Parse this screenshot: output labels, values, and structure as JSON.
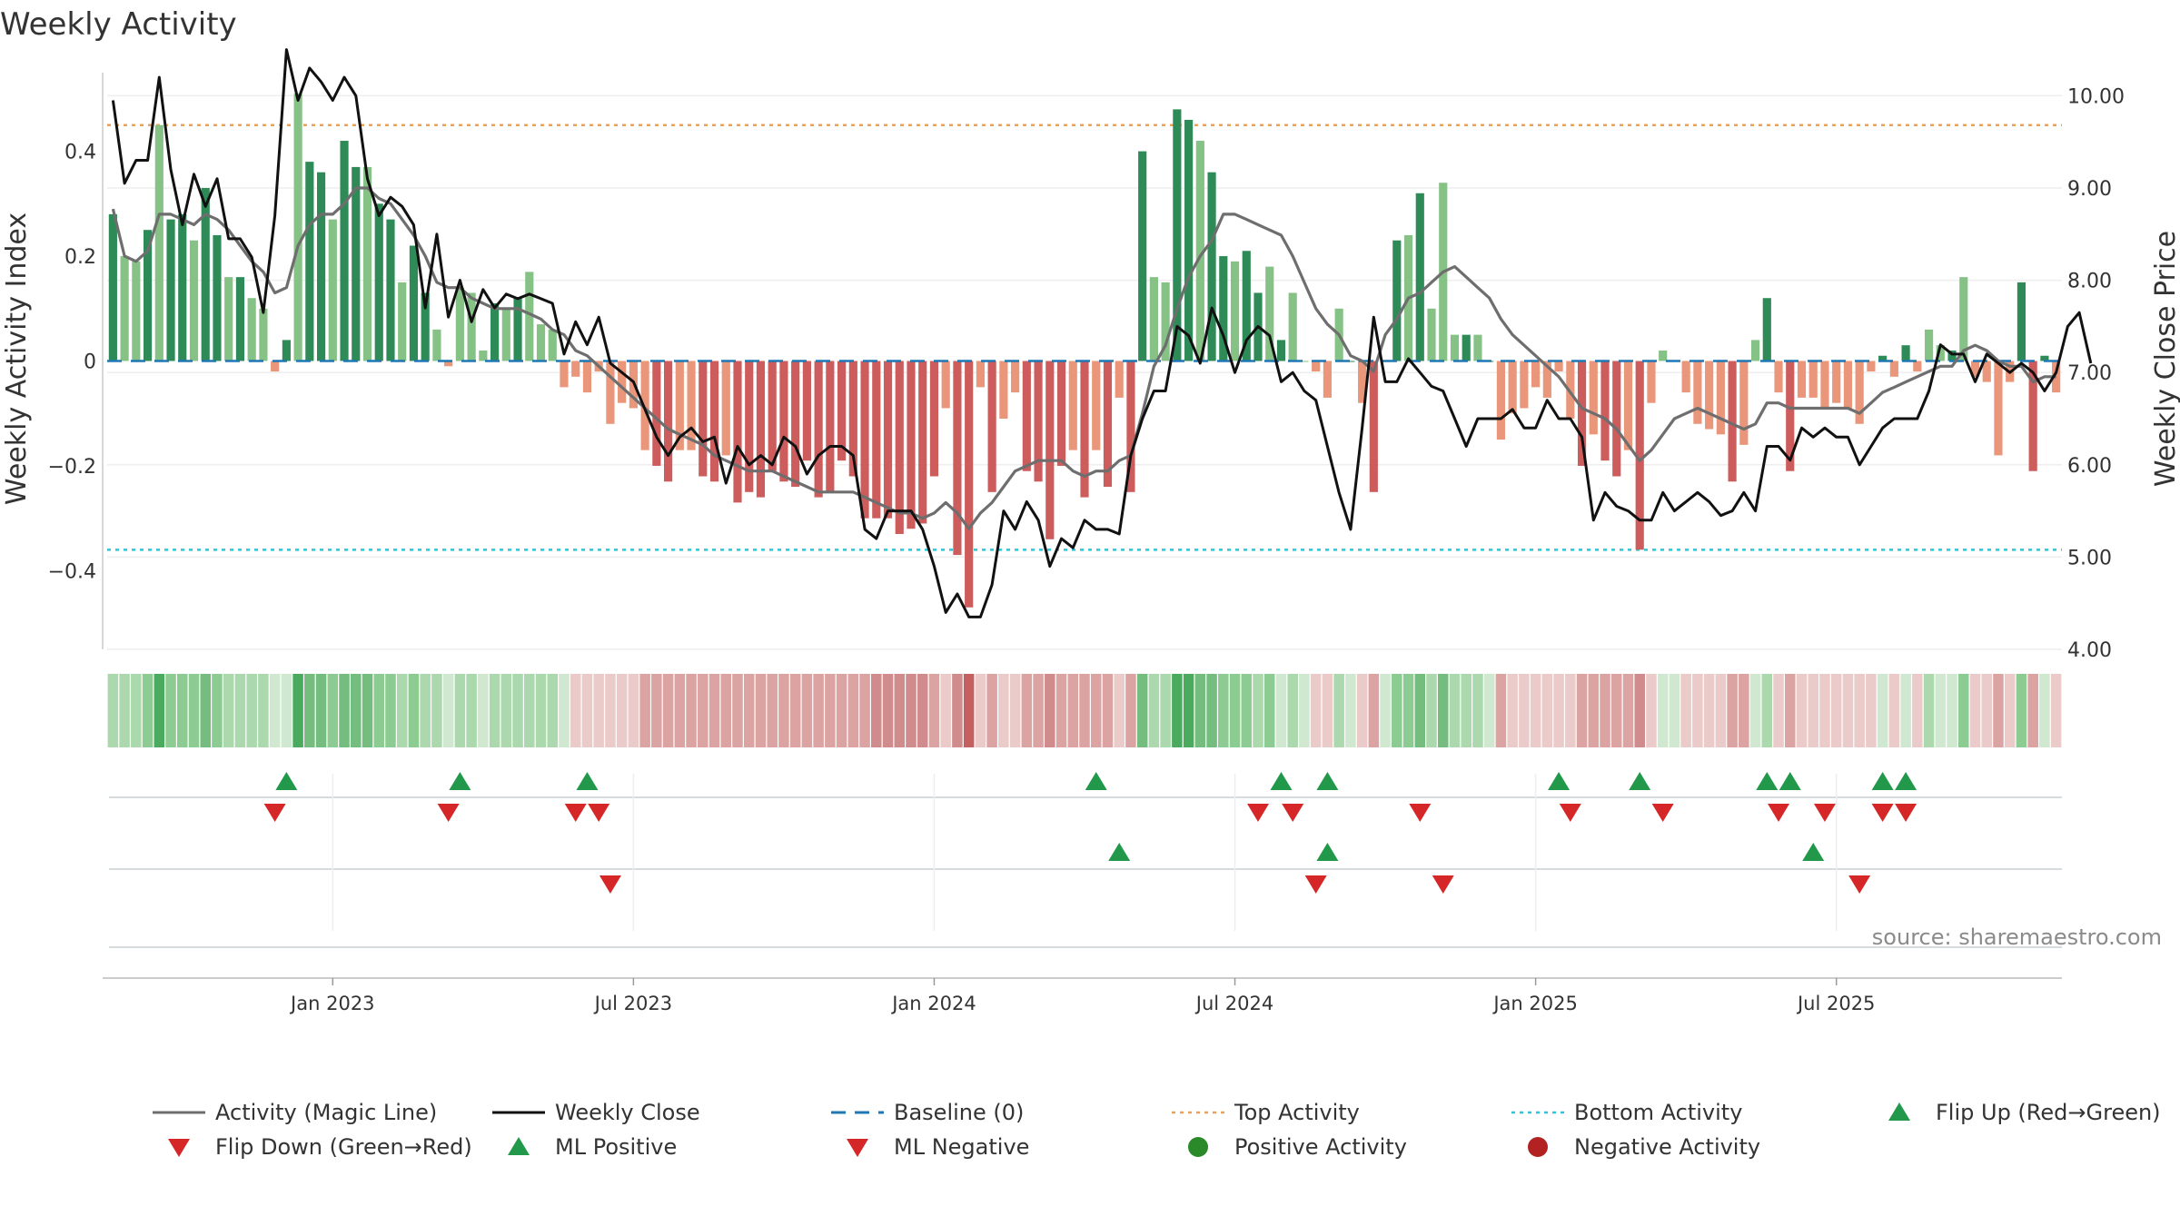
{
  "chart_data": {
    "type": "bar",
    "title": "Weekly Activity",
    "ylabel_left": "Weekly Activity Index",
    "ylabel_right": "Weekly Close Price",
    "source": "source: sharemaestro.com",
    "left_axis": {
      "min": -0.55,
      "max": 0.55,
      "ticks": [
        0.4,
        0.2,
        0,
        -0.2,
        -0.4
      ],
      "tick_labels": [
        "0.4",
        "0.2",
        "0",
        "−0.2",
        "−0.4"
      ]
    },
    "right_axis": {
      "min": 4.0,
      "max": 10.25,
      "ticks": [
        10,
        9,
        8,
        7,
        6,
        5,
        4
      ],
      "tick_labels": [
        "10.00",
        "9.00",
        "8.00",
        "7.00",
        "6.00",
        "5.00",
        "4.00"
      ]
    },
    "x_labels": [
      {
        "label": "Jan 2023",
        "week": 19
      },
      {
        "label": "Jul 2023",
        "week": 45
      },
      {
        "label": "Jan 2024",
        "week": 71
      },
      {
        "label": "Jul 2024",
        "week": 97
      },
      {
        "label": "Jan 2025",
        "week": 123
      },
      {
        "label": "Jul 2025",
        "week": 149
      }
    ],
    "top_activity": 0.45,
    "bottom_activity": -0.36,
    "baseline": 0,
    "activity": [
      0.28,
      0.2,
      0.19,
      0.25,
      0.45,
      0.27,
      0.28,
      0.23,
      0.33,
      0.24,
      0.16,
      0.16,
      0.12,
      0.1,
      -0.02,
      0.04,
      0.51,
      0.38,
      0.36,
      0.27,
      0.42,
      0.37,
      0.37,
      0.3,
      0.27,
      0.15,
      0.22,
      0.13,
      0.06,
      -0.01,
      0.14,
      0.13,
      0.02,
      0.11,
      0.1,
      0.12,
      0.17,
      0.07,
      0.06,
      -0.05,
      -0.03,
      -0.06,
      -0.02,
      -0.12,
      -0.08,
      -0.09,
      -0.17,
      -0.2,
      -0.23,
      -0.17,
      -0.17,
      -0.22,
      -0.23,
      -0.18,
      -0.27,
      -0.25,
      -0.26,
      -0.21,
      -0.23,
      -0.24,
      -0.19,
      -0.26,
      -0.25,
      -0.19,
      -0.22,
      -0.3,
      -0.3,
      -0.3,
      -0.33,
      -0.32,
      -0.31,
      -0.22,
      -0.09,
      -0.37,
      -0.47,
      -0.05,
      -0.25,
      -0.11,
      -0.06,
      -0.21,
      -0.23,
      -0.34,
      -0.2,
      -0.17,
      -0.26,
      -0.17,
      -0.24,
      -0.07,
      -0.25,
      0.4,
      0.16,
      0.15,
      0.48,
      0.46,
      0.42,
      0.36,
      0.2,
      0.19,
      0.21,
      0.13,
      0.18,
      0.04,
      0.13,
      0.0,
      -0.02,
      -0.07,
      0.1,
      0.0,
      -0.08,
      -0.25,
      0.0,
      0.23,
      0.24,
      0.32,
      0.1,
      0.34,
      0.05,
      0.05,
      0.05,
      0.0,
      -0.15,
      -0.1,
      -0.09,
      -0.05,
      -0.07,
      -0.02,
      -0.11,
      -0.2,
      -0.14,
      -0.19,
      -0.22,
      -0.17,
      -0.36,
      -0.08,
      0.02,
      0.0,
      -0.06,
      -0.12,
      -0.13,
      -0.14,
      -0.23,
      -0.16,
      0.04,
      0.12,
      -0.06,
      -0.21,
      -0.07,
      -0.07,
      -0.09,
      -0.08,
      -0.09,
      -0.12,
      -0.02,
      0.01,
      -0.03,
      0.03,
      -0.02,
      0.06,
      0.03,
      0.02,
      0.16,
      -0.03,
      -0.04,
      -0.18,
      -0.04,
      0.15,
      -0.21,
      0.01,
      -0.06
    ],
    "magic_line": [
      0.29,
      0.2,
      0.19,
      0.21,
      0.28,
      0.28,
      0.27,
      0.26,
      0.28,
      0.27,
      0.25,
      0.22,
      0.19,
      0.17,
      0.13,
      0.14,
      0.22,
      0.26,
      0.28,
      0.28,
      0.3,
      0.33,
      0.33,
      0.31,
      0.3,
      0.27,
      0.24,
      0.2,
      0.15,
      0.14,
      0.14,
      0.12,
      0.11,
      0.1,
      0.1,
      0.1,
      0.09,
      0.08,
      0.06,
      0.05,
      0.02,
      0.01,
      -0.01,
      -0.03,
      -0.05,
      -0.07,
      -0.09,
      -0.11,
      -0.13,
      -0.14,
      -0.15,
      -0.16,
      -0.18,
      -0.19,
      -0.2,
      -0.21,
      -0.21,
      -0.21,
      -0.22,
      -0.23,
      -0.24,
      -0.25,
      -0.25,
      -0.25,
      -0.25,
      -0.26,
      -0.27,
      -0.28,
      -0.29,
      -0.29,
      -0.3,
      -0.29,
      -0.27,
      -0.29,
      -0.32,
      -0.29,
      -0.27,
      -0.24,
      -0.21,
      -0.2,
      -0.19,
      -0.19,
      -0.19,
      -0.21,
      -0.22,
      -0.21,
      -0.21,
      -0.19,
      -0.18,
      -0.1,
      -0.01,
      0.03,
      0.1,
      0.16,
      0.2,
      0.23,
      0.28,
      0.28,
      0.27,
      0.26,
      0.25,
      0.24,
      0.2,
      0.15,
      0.1,
      0.07,
      0.05,
      0.01,
      0.0,
      -0.02,
      0.05,
      0.08,
      0.12,
      0.13,
      0.15,
      0.17,
      0.18,
      0.16,
      0.14,
      0.12,
      0.08,
      0.05,
      0.03,
      0.01,
      -0.01,
      -0.03,
      -0.06,
      -0.09,
      -0.1,
      -0.11,
      -0.13,
      -0.16,
      -0.19,
      -0.17,
      -0.14,
      -0.11,
      -0.1,
      -0.09,
      -0.1,
      -0.11,
      -0.12,
      -0.13,
      -0.12,
      -0.08,
      -0.08,
      -0.09,
      -0.09,
      -0.09,
      -0.09,
      -0.09,
      -0.09,
      -0.1,
      -0.08,
      -0.06,
      -0.05,
      -0.04,
      -0.03,
      -0.02,
      -0.01,
      -0.01,
      0.02,
      0.03,
      0.02,
      0.0,
      -0.01,
      -0.01,
      -0.04,
      -0.03,
      -0.03
    ],
    "weekly_close": [
      9.95,
      9.05,
      9.3,
      9.3,
      10.2,
      9.2,
      8.6,
      9.15,
      8.8,
      9.1,
      8.45,
      8.45,
      8.25,
      7.65,
      8.7,
      10.5,
      9.95,
      10.3,
      10.15,
      9.95,
      10.2,
      10.0,
      9.1,
      8.7,
      8.9,
      8.8,
      8.6,
      7.7,
      8.5,
      7.6,
      8.0,
      7.55,
      7.9,
      7.7,
      7.85,
      7.8,
      7.85,
      7.8,
      7.75,
      7.2,
      7.55,
      7.3,
      7.6,
      7.1,
      7.0,
      6.9,
      6.6,
      6.3,
      6.1,
      6.3,
      6.4,
      6.25,
      6.3,
      5.8,
      6.2,
      6.0,
      6.1,
      6.0,
      6.3,
      6.2,
      5.9,
      6.1,
      6.2,
      6.2,
      6.1,
      5.3,
      5.2,
      5.5,
      5.5,
      5.5,
      5.3,
      4.9,
      4.4,
      4.6,
      4.35,
      4.35,
      4.7,
      5.5,
      5.3,
      5.6,
      5.4,
      4.9,
      5.2,
      5.1,
      5.4,
      5.3,
      5.3,
      5.25,
      6.1,
      6.5,
      6.8,
      6.8,
      7.5,
      7.4,
      7.1,
      7.7,
      7.4,
      7.0,
      7.35,
      7.5,
      7.4,
      6.9,
      7.0,
      6.8,
      6.7,
      6.2,
      5.7,
      5.3,
      6.4,
      7.6,
      6.9,
      6.9,
      7.15,
      7.0,
      6.85,
      6.8,
      6.5,
      6.2,
      6.5,
      6.5,
      6.5,
      6.6,
      6.4,
      6.4,
      6.7,
      6.5,
      6.5,
      6.3,
      5.4,
      5.7,
      5.55,
      5.5,
      5.4,
      5.4,
      5.7,
      5.5,
      5.6,
      5.7,
      5.6,
      5.45,
      5.5,
      5.7,
      5.5,
      6.2,
      6.2,
      6.05,
      6.4,
      6.3,
      6.4,
      6.3,
      6.3,
      6.0,
      6.2,
      6.4,
      6.5,
      6.5,
      6.5,
      6.8,
      7.3,
      7.2,
      7.2,
      6.9,
      7.2,
      7.1,
      7.0,
      7.1,
      7.0,
      6.8,
      7.0,
      7.5,
      7.65,
      7.1
    ],
    "heat_strip": [
      1,
      1,
      1,
      2,
      4,
      2,
      2,
      2,
      3,
      2,
      1,
      1,
      1,
      1,
      0,
      0,
      4,
      3,
      3,
      2,
      3,
      3,
      3,
      2,
      2,
      1,
      2,
      1,
      1,
      0,
      1,
      1,
      0,
      1,
      1,
      1,
      1,
      1,
      1,
      0,
      -1,
      -1,
      -1,
      -1,
      -1,
      -1,
      -2,
      -2,
      -2,
      -2,
      -2,
      -2,
      -2,
      -2,
      -2,
      -2,
      -2,
      -2,
      -2,
      -2,
      -2,
      -2,
      -2,
      -2,
      -2,
      -2,
      -3,
      -3,
      -3,
      -3,
      -3,
      -2,
      -1,
      -3,
      -4,
      -1,
      -2,
      -1,
      -1,
      -2,
      -2,
      -3,
      -2,
      -2,
      -2,
      -2,
      -2,
      -1,
      -2,
      3,
      1,
      1,
      4,
      4,
      3,
      3,
      2,
      2,
      2,
      1,
      2,
      0,
      1,
      0,
      -1,
      -1,
      1,
      0,
      -1,
      -2,
      0,
      2,
      2,
      3,
      1,
      3,
      1,
      1,
      1,
      0,
      -2,
      -1,
      -1,
      -1,
      -1,
      -1,
      -1,
      -2,
      -2,
      -2,
      -2,
      -2,
      -3,
      -1,
      0,
      0,
      -1,
      -1,
      -1,
      -1,
      -2,
      -2,
      0,
      1,
      -1,
      -2,
      -1,
      -1,
      -1,
      -1,
      -1,
      -1,
      -1,
      0,
      -1,
      0,
      -1,
      1,
      0,
      0,
      2,
      -1,
      -1,
      -2,
      -1,
      2,
      -2,
      0,
      -1
    ],
    "flip_up_weeks": [
      15,
      30,
      41,
      85,
      101,
      105,
      125,
      132,
      143,
      145,
      153,
      155
    ],
    "flip_down_weeks": [
      14,
      29,
      40,
      42,
      99,
      102,
      113,
      126,
      134,
      144,
      148,
      153,
      155
    ],
    "ml_positive_weeks": [
      87,
      105,
      147
    ],
    "ml_negative_weeks": [
      43,
      104,
      115,
      151
    ],
    "positive_activity_weeks": [],
    "negative_activity_weeks": [],
    "legend": [
      {
        "label": "Activity (Magic Line)",
        "type": "line-solid",
        "color": "#6e6e6e"
      },
      {
        "label": "Weekly Close",
        "type": "line-solid",
        "color": "#111111"
      },
      {
        "label": "Baseline (0)",
        "type": "line-dash",
        "color": "#1f77b4"
      },
      {
        "label": "Top Activity",
        "type": "line-dot",
        "color": "#e8a25c"
      },
      {
        "label": "Bottom Activity",
        "type": "line-dot",
        "color": "#2ec6d6"
      },
      {
        "label": "Flip Up (Red→Green)",
        "type": "tri-up",
        "color": "#22994a"
      },
      {
        "label": "Flip Down (Green→Red)",
        "type": "tri-down",
        "color": "#d62728"
      },
      {
        "label": "ML Positive",
        "type": "tri-up",
        "color": "#22994a"
      },
      {
        "label": "ML Negative",
        "type": "tri-down",
        "color": "#d62728"
      },
      {
        "label": "Positive Activity",
        "type": "dot",
        "color": "#2a8a2a"
      },
      {
        "label": "Negative Activity",
        "type": "dot",
        "color": "#b22222"
      }
    ],
    "colors": {
      "pos_strong": "#2e8b57",
      "pos_light": "#86c286",
      "neg_strong": "#cd5c5c",
      "neg_light": "#e9967a",
      "magic_line": "#6e6e6e",
      "close_line": "#111111",
      "baseline": "#1f77b4",
      "top_line": "#e8a25c",
      "bottom_line": "#2ec6d6",
      "flip_up": "#22994a",
      "flip_down": "#d62728",
      "grid": "#eeeeee",
      "axis": "#cccccc"
    }
  }
}
